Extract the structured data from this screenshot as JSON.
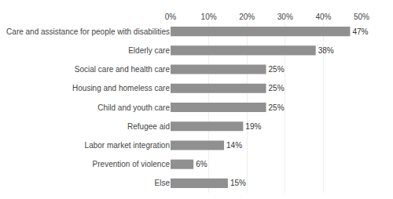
{
  "chart_data": {
    "type": "bar",
    "orientation": "horizontal",
    "categories": [
      "Care and assistance for people with disabilities",
      "Elderly care",
      "Social care and health care",
      "Housing and homeless care",
      "Child and youth care",
      "Refugee aid",
      "Labor market integration",
      "Prevention of violence",
      "Else"
    ],
    "values": [
      47,
      38,
      25,
      25,
      25,
      19,
      14,
      6,
      15
    ],
    "value_labels": [
      "47%",
      "38%",
      "25%",
      "25%",
      "25%",
      "19%",
      "14%",
      "6%",
      "15%"
    ],
    "data_labels": true,
    "color": "#909090",
    "xlim": [
      0,
      50
    ],
    "xticks": [
      {
        "value": 0,
        "label": "0%"
      },
      {
        "value": 10,
        "label": "10%"
      },
      {
        "value": 20,
        "label": "20%"
      },
      {
        "value": 30,
        "label": "30%"
      },
      {
        "value": 40,
        "label": "40%"
      },
      {
        "value": 50,
        "label": "50%"
      }
    ],
    "grid": true
  }
}
